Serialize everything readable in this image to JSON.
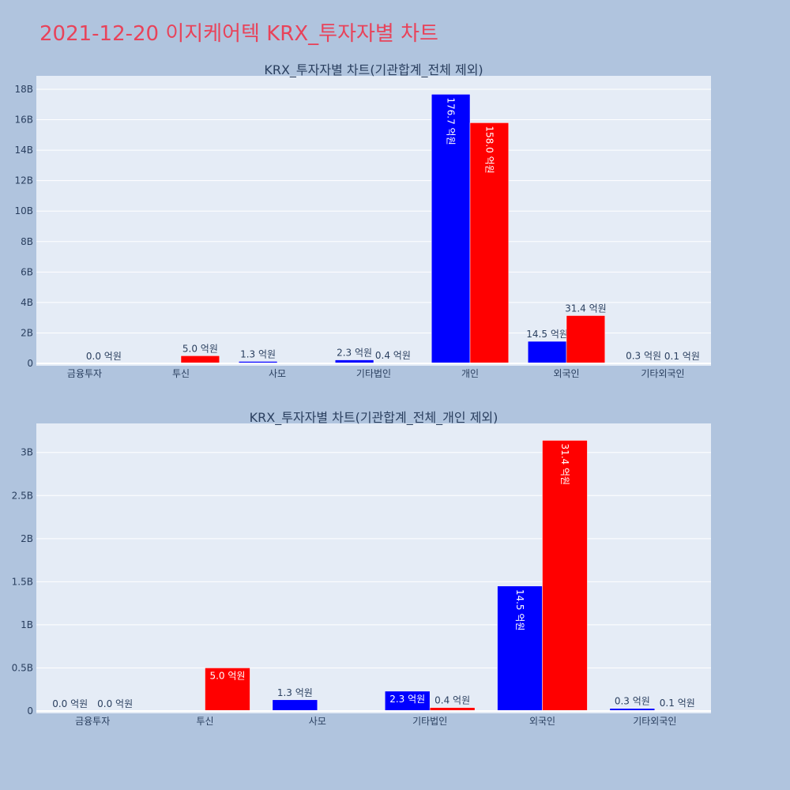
{
  "page": {
    "title": "2021-12-20 이지케어텍 KRX_투자자별 차트",
    "title_color": "#e8435a",
    "background": "#b0c4de",
    "plot_background": "#e5ecf6"
  },
  "chart_data": [
    {
      "type": "bar",
      "title": "KRX_투자자별 차트(기관합계_전체 제외)",
      "categories": [
        "금융투자",
        "투신",
        "사모",
        "기타법인",
        "개인",
        "외국인",
        "기타외국인"
      ],
      "series": [
        {
          "color": "#0000ff",
          "values": [
            0,
            0,
            130000000,
            230000000,
            17670000000,
            1450000000,
            30000000
          ]
        },
        {
          "color": "#ff0000",
          "values": [
            0,
            500000000,
            0,
            40000000,
            15800000000,
            3140000000,
            10000000
          ]
        }
      ],
      "labels": [
        [
          "",
          "",
          "1.3 억원",
          "2.3 억원",
          "176.7 억원",
          "14.5 억원",
          "0.3 억원"
        ],
        [
          "0.0 억원",
          "5.0 억원",
          "",
          "0.4 억원",
          "158.0 억원",
          "31.4 억원",
          "0.1 억원"
        ]
      ],
      "ylim": [
        0,
        18000000000
      ],
      "yticks": [
        0,
        2000000000,
        4000000000,
        6000000000,
        8000000000,
        10000000000,
        12000000000,
        14000000000,
        16000000000,
        18000000000
      ],
      "ytick_labels": [
        "0",
        "2B",
        "4B",
        "6B",
        "8B",
        "10B",
        "12B",
        "14B",
        "16B",
        "18B"
      ],
      "grid": true
    },
    {
      "type": "bar",
      "title": "KRX_투자자별 차트(기관합계_전체_개인 제외)",
      "categories": [
        "금융투자",
        "투신",
        "사모",
        "기타법인",
        "외국인",
        "기타외국인"
      ],
      "series": [
        {
          "color": "#0000ff",
          "values": [
            0,
            0,
            130000000,
            230000000,
            1450000000,
            30000000
          ]
        },
        {
          "color": "#ff0000",
          "values": [
            0,
            500000000,
            0,
            40000000,
            3140000000,
            10000000
          ]
        }
      ],
      "labels": [
        [
          "0.0 억원",
          "",
          "1.3 억원",
          "2.3 억원",
          "14.5 억원",
          "0.3 억원"
        ],
        [
          "0.0 억원",
          "5.0 억원",
          "",
          "0.4 억원",
          "31.4 억원",
          "0.1 억원"
        ]
      ],
      "ylim": [
        0,
        3300000000
      ],
      "yticks": [
        0,
        500000000,
        1000000000,
        1500000000,
        2000000000,
        2500000000,
        3000000000
      ],
      "ytick_labels": [
        "0",
        "0.5B",
        "1B",
        "1.5B",
        "2B",
        "2.5B",
        "3B"
      ],
      "grid": true
    }
  ]
}
